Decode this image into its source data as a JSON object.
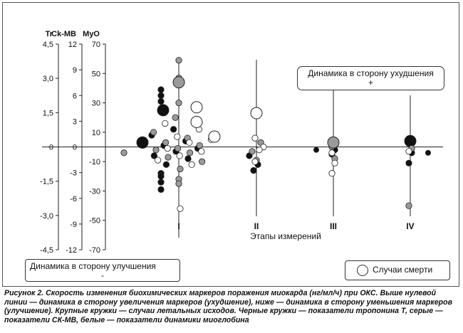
{
  "chart_data": {
    "type": "scatter",
    "axes": [
      {
        "label": "Tr",
        "range": [
          -4.5,
          4.5
        ],
        "ticks": [
          "4,5",
          "3,0",
          "1,5",
          "0",
          "-1,5",
          "-3,0",
          "-4,5"
        ]
      },
      {
        "label": "Ck-MB",
        "range": [
          -12,
          12
        ],
        "ticks": [
          "12",
          "9",
          "6",
          "3",
          "0",
          "-3",
          "-6",
          "-9",
          "-12"
        ]
      },
      {
        "label": "MyO",
        "range": [
          -70,
          70
        ],
        "ticks": [
          "70",
          "50",
          "30",
          "10",
          "-10",
          "-30",
          "-50",
          "-70"
        ]
      }
    ],
    "primary_axis": "MyO",
    "xlabel": "Этапы измерений",
    "stages": [
      "I",
      "II",
      "III",
      "IV"
    ],
    "grid": false,
    "annotations": {
      "worsening": {
        "text": "Динамика в сторону ухудшения",
        "sign": "+"
      },
      "improving": {
        "text": "Динамика в сторону улучшения",
        "sign": "-"
      },
      "death_legend": "Случаи смерти"
    },
    "series": [
      {
        "marker": "black",
        "stage": "I",
        "myo_values": [
          39,
          35,
          31,
          18,
          12,
          8,
          4,
          1,
          -1,
          -3,
          -6,
          -8,
          -12,
          -18,
          -20,
          -24,
          -29
        ],
        "fatal": [
          {
            "stage_offset": -0.22,
            "myo": 25
          }
        ]
      },
      {
        "marker": "grey",
        "stage": "I",
        "myo_values": [
          59,
          47,
          30,
          20,
          10,
          6,
          3,
          1,
          -1,
          -2,
          -4,
          -7,
          -10,
          -15,
          -22,
          -25
        ],
        "fatal": [
          {
            "stage_offset": 0,
            "myo": 44
          }
        ]
      },
      {
        "marker": "white",
        "stage": "I",
        "myo_values": [
          16,
          12,
          7,
          5,
          3,
          -1,
          -3,
          -6,
          -9,
          -12,
          -42
        ],
        "fatal": [
          {
            "stage_offset": 0.25,
            "myo": 27
          },
          {
            "stage_offset": 0.25,
            "myo": 17
          },
          {
            "stage_offset": 0.5,
            "myo": 7
          }
        ]
      },
      {
        "marker": "black",
        "stage": "II",
        "myo_values": [
          -6,
          -12,
          -16
        ],
        "fatal": []
      },
      {
        "marker": "grey",
        "stage": "II",
        "myo_values": [
          -3,
          3,
          -9
        ],
        "fatal": []
      },
      {
        "marker": "white",
        "stage": "II",
        "myo_values": [
          6,
          0,
          -2,
          -10
        ],
        "fatal": [
          {
            "stage_offset": 0,
            "myo": 23
          }
        ]
      },
      {
        "marker": "black",
        "stage": "III",
        "myo_values": [
          -5,
          -2
        ],
        "fatal": []
      },
      {
        "marker": "grey",
        "stage": "III",
        "myo_values": [
          0,
          -8
        ],
        "fatal": [
          {
            "stage_offset": 0,
            "myo": 3
          }
        ]
      },
      {
        "marker": "white",
        "stage": "III",
        "myo_values": [
          -4,
          -11,
          -18
        ],
        "fatal": []
      },
      {
        "marker": "black",
        "stage": "IV",
        "myo_values": [
          -11,
          -4
        ],
        "fatal": [
          {
            "stage_offset": 0,
            "myo": 4
          }
        ]
      },
      {
        "marker": "grey",
        "stage": "IV",
        "myo_values": [
          -40,
          -1
        ],
        "fatal": []
      },
      {
        "marker": "white",
        "stage": "IV",
        "myo_values": [
          -3
        ],
        "fatal": []
      }
    ]
  },
  "caption": "Рисунок 2. Скорость изменения биохимических маркеров поражения миокарда (нг/мл/ч) при ОКС. Выше нулевой линии — динамика в сторону увеличения маркеров (ухудшение), ниже — динамика в сторону уменьшения маркеров (улучшение). Крупные кружки — случаи летальных исходов. Черные кружки — показатели тропонина Т, серые — показатели СК-МВ, белые — показатели динамики миоглобина",
  "colors": {
    "black": "#111111",
    "grey": "#9a9a9a",
    "white": "#ffffff",
    "axis": "#222222"
  }
}
